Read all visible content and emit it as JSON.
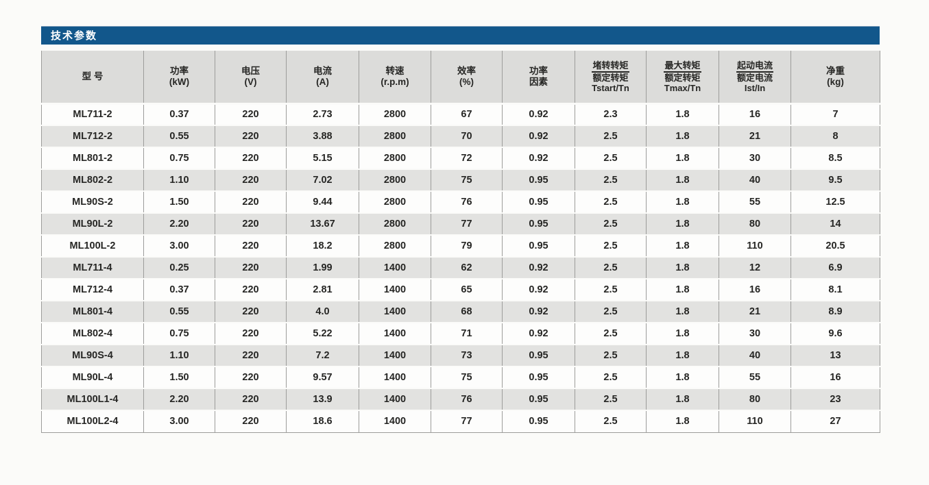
{
  "section": {
    "title": "技术参数"
  },
  "colors": {
    "accent_blue": "#12578b",
    "header_gray": "#dcdcda",
    "stripe_gray": "#e2e2e0",
    "grid_line": "#9c9c9a",
    "text": "#262624"
  },
  "table": {
    "headers": [
      {
        "lines": [
          "型 号"
        ],
        "fraction": false
      },
      {
        "lines": [
          "功率",
          "(kW)"
        ],
        "fraction": false
      },
      {
        "lines": [
          "电压",
          "(V)"
        ],
        "fraction": false
      },
      {
        "lines": [
          "电流",
          "(A)"
        ],
        "fraction": false
      },
      {
        "lines": [
          "转速",
          "(r.p.m)"
        ],
        "fraction": false
      },
      {
        "lines": [
          "效率",
          "(%)"
        ],
        "fraction": false
      },
      {
        "lines": [
          "功率",
          "因素"
        ],
        "fraction": false
      },
      {
        "lines": [
          "堵转转矩",
          "额定转矩",
          "Tstart/Tn"
        ],
        "fraction": true
      },
      {
        "lines": [
          "最大转矩",
          "额定转矩",
          "Tmax/Tn"
        ],
        "fraction": true
      },
      {
        "lines": [
          "起动电流",
          "额定电流",
          "Ist/In"
        ],
        "fraction": true
      },
      {
        "lines": [
          "净重",
          "(kg)"
        ],
        "fraction": false
      }
    ],
    "rows": [
      [
        "ML711-2",
        "0.37",
        "220",
        "2.73",
        "2800",
        "67",
        "0.92",
        "2.3",
        "1.8",
        "16",
        "7"
      ],
      [
        "ML712-2",
        "0.55",
        "220",
        "3.88",
        "2800",
        "70",
        "0.92",
        "2.5",
        "1.8",
        "21",
        "8"
      ],
      [
        "ML801-2",
        "0.75",
        "220",
        "5.15",
        "2800",
        "72",
        "0.92",
        "2.5",
        "1.8",
        "30",
        "8.5"
      ],
      [
        "ML802-2",
        "1.10",
        "220",
        "7.02",
        "2800",
        "75",
        "0.95",
        "2.5",
        "1.8",
        "40",
        "9.5"
      ],
      [
        "ML90S-2",
        "1.50",
        "220",
        "9.44",
        "2800",
        "76",
        "0.95",
        "2.5",
        "1.8",
        "55",
        "12.5"
      ],
      [
        "ML90L-2",
        "2.20",
        "220",
        "13.67",
        "2800",
        "77",
        "0.95",
        "2.5",
        "1.8",
        "80",
        "14"
      ],
      [
        "ML100L-2",
        "3.00",
        "220",
        "18.2",
        "2800",
        "79",
        "0.95",
        "2.5",
        "1.8",
        "110",
        "20.5"
      ],
      [
        "ML711-4",
        "0.25",
        "220",
        "1.99",
        "1400",
        "62",
        "0.92",
        "2.5",
        "1.8",
        "12",
        "6.9"
      ],
      [
        "ML712-4",
        "0.37",
        "220",
        "2.81",
        "1400",
        "65",
        "0.92",
        "2.5",
        "1.8",
        "16",
        "8.1"
      ],
      [
        "ML801-4",
        "0.55",
        "220",
        "4.0",
        "1400",
        "68",
        "0.92",
        "2.5",
        "1.8",
        "21",
        "8.9"
      ],
      [
        "ML802-4",
        "0.75",
        "220",
        "5.22",
        "1400",
        "71",
        "0.92",
        "2.5",
        "1.8",
        "30",
        "9.6"
      ],
      [
        "ML90S-4",
        "1.10",
        "220",
        "7.2",
        "1400",
        "73",
        "0.95",
        "2.5",
        "1.8",
        "40",
        "13"
      ],
      [
        "ML90L-4",
        "1.50",
        "220",
        "9.57",
        "1400",
        "75",
        "0.95",
        "2.5",
        "1.8",
        "55",
        "16"
      ],
      [
        "ML100L1-4",
        "2.20",
        "220",
        "13.9",
        "1400",
        "76",
        "0.95",
        "2.5",
        "1.8",
        "80",
        "23"
      ],
      [
        "ML100L2-4",
        "3.00",
        "220",
        "18.6",
        "1400",
        "77",
        "0.95",
        "2.5",
        "1.8",
        "110",
        "27"
      ]
    ]
  }
}
